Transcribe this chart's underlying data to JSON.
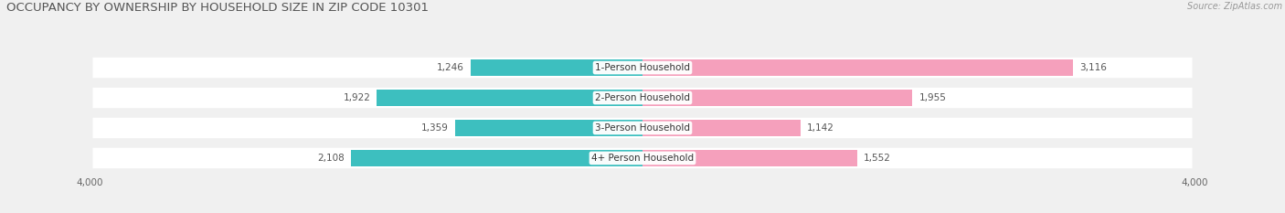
{
  "title": "OCCUPANCY BY OWNERSHIP BY HOUSEHOLD SIZE IN ZIP CODE 10301",
  "source": "Source: ZipAtlas.com",
  "categories": [
    "1-Person Household",
    "2-Person Household",
    "3-Person Household",
    "4+ Person Household"
  ],
  "owner_values": [
    1246,
    1922,
    1359,
    2108
  ],
  "renter_values": [
    3116,
    1955,
    1142,
    1552
  ],
  "owner_color": "#3dbfbf",
  "renter_color": "#f5a0bc",
  "axis_max": 4000,
  "bg_color": "#f0f0f0",
  "row_bg_color": "#ffffff",
  "title_fontsize": 9.5,
  "label_fontsize": 7.5,
  "tick_fontsize": 7.5,
  "legend_fontsize": 8.0,
  "source_fontsize": 7.0,
  "bar_height": 0.52,
  "figsize": [
    14.06,
    2.33
  ],
  "dpi": 100
}
